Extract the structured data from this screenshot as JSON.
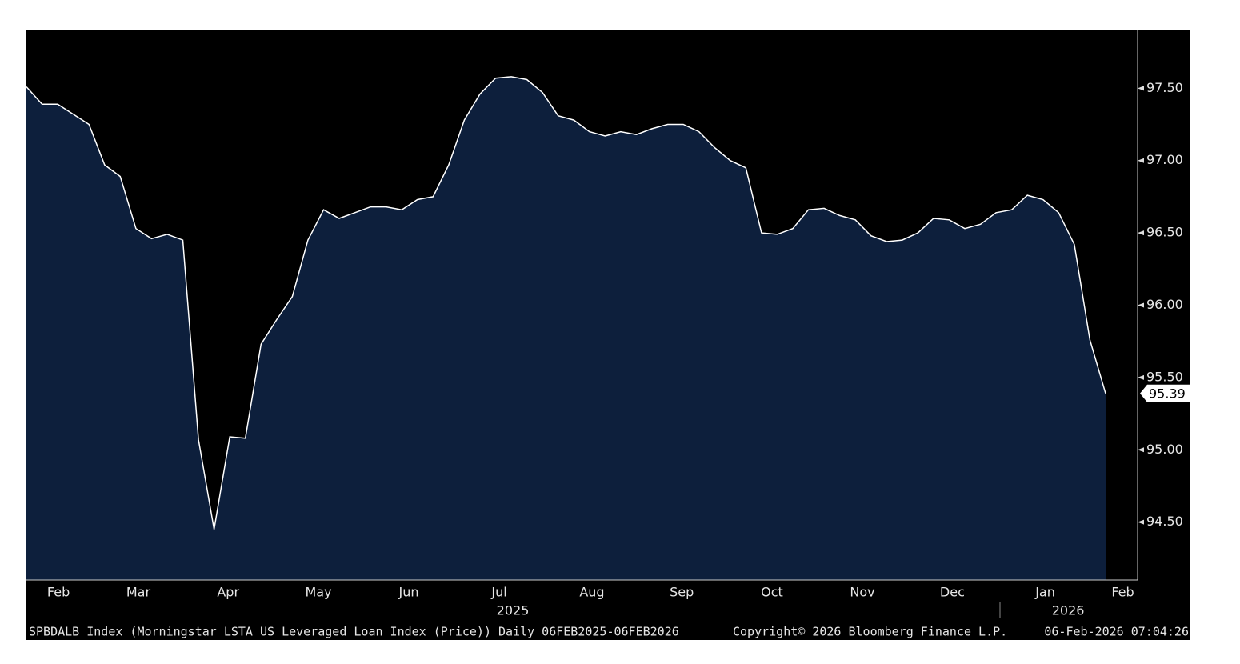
{
  "chart_data": {
    "type": "area",
    "categories": [
      null,
      null,
      null,
      null,
      null,
      null,
      null,
      null,
      null,
      null,
      null,
      null,
      null,
      null,
      null,
      null,
      null,
      null,
      null,
      null,
      null,
      null,
      null,
      null,
      null,
      null,
      null,
      null,
      null,
      null,
      null,
      null,
      null,
      null,
      null,
      null,
      null,
      null,
      null,
      null,
      null,
      null,
      null,
      null,
      null,
      null,
      null,
      null,
      null,
      null,
      null,
      null,
      null,
      null,
      null,
      null,
      null,
      null,
      null,
      null,
      null,
      null,
      null,
      null,
      null,
      null,
      null,
      null,
      null,
      null
    ],
    "values": [
      97.51,
      97.39,
      97.39,
      97.32,
      97.25,
      96.97,
      96.89,
      96.53,
      96.46,
      96.49,
      96.45,
      95.07,
      94.45,
      95.09,
      95.08,
      95.73,
      95.9,
      96.06,
      96.45,
      96.66,
      96.6,
      96.64,
      96.68,
      96.68,
      96.66,
      96.73,
      96.75,
      96.97,
      97.28,
      97.46,
      97.57,
      97.58,
      97.56,
      97.47,
      97.31,
      97.28,
      97.2,
      97.17,
      97.2,
      97.18,
      97.22,
      97.25,
      97.25,
      97.2,
      97.09,
      97.0,
      96.95,
      96.5,
      96.49,
      96.53,
      96.66,
      96.67,
      96.62,
      96.59,
      96.48,
      96.44,
      96.45,
      96.5,
      96.6,
      96.59,
      96.53,
      96.56,
      96.64,
      96.66,
      96.76,
      96.73,
      96.64,
      96.42,
      95.76,
      95.39
    ],
    "color": "#ffffff",
    "fill": "#0d1f3c",
    "background": "#000000",
    "ylim": [
      94.1,
      97.9
    ],
    "yticks": [
      {
        "value": 94.5,
        "label": "94.50"
      },
      {
        "value": 95.0,
        "label": "95.00"
      },
      {
        "value": 95.5,
        "label": "95.50"
      },
      {
        "value": 96.0,
        "label": "96.00"
      },
      {
        "value": 96.5,
        "label": "96.50"
      },
      {
        "value": 97.0,
        "label": "97.00"
      },
      {
        "value": 97.5,
        "label": "97.50"
      }
    ],
    "xticks": [
      {
        "value": 2.05,
        "label": "Feb"
      },
      {
        "value": 7.16,
        "label": "Mar"
      },
      {
        "value": 12.9,
        "label": "Apr"
      },
      {
        "value": 18.67,
        "label": "May"
      },
      {
        "value": 24.45,
        "label": "Jun"
      },
      {
        "value": 30.23,
        "label": "Jul"
      },
      {
        "value": 36.16,
        "label": "Aug"
      },
      {
        "value": 41.9,
        "label": "Sep"
      },
      {
        "value": 47.67,
        "label": "Oct"
      },
      {
        "value": 53.45,
        "label": "Nov"
      },
      {
        "value": 59.2,
        "label": "Dec"
      },
      {
        "value": 65.14,
        "label": "Jan"
      },
      {
        "value": 70.1,
        "label": "Feb"
      }
    ],
    "year_labels": [
      {
        "value": 31.1,
        "label": "2025"
      },
      {
        "value": 66.6,
        "label": "2026"
      }
    ],
    "source": "SPBDALB Index (Morningstar LSTA US Leveraged Loan Index (Price)) Daily 06FEB2025-06FEB2026",
    "copyright": "Copyright© 2026 Bloomberg Finance L.P.",
    "timestamp": "06-Feb-2026 07:04:26"
  }
}
